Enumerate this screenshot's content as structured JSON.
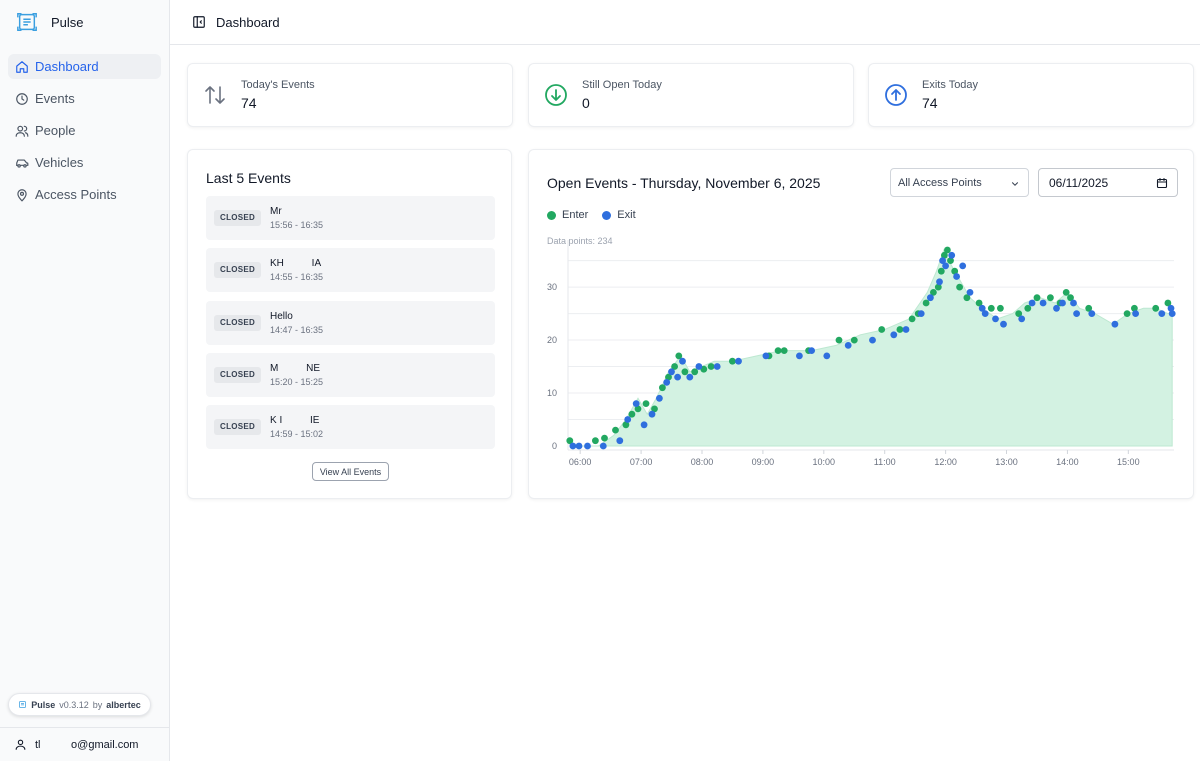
{
  "app": {
    "name": "Pulse"
  },
  "sidebar": {
    "items": [
      {
        "label": "Dashboard",
        "icon": "home-icon",
        "active": true
      },
      {
        "label": "Events",
        "icon": "clock-icon",
        "active": false
      },
      {
        "label": "People",
        "icon": "users-icon",
        "active": false
      },
      {
        "label": "Vehicles",
        "icon": "car-icon",
        "active": false
      },
      {
        "label": "Access Points",
        "icon": "map-pin-icon",
        "active": false
      }
    ],
    "version": {
      "app": "Pulse",
      "version": "v0.3.12",
      "by": "by",
      "company": "albertec"
    },
    "user_email": "tl          o@gmail.com"
  },
  "header": {
    "title": "Dashboard"
  },
  "stats": {
    "todays_events": {
      "label": "Today's Events",
      "value": "74"
    },
    "still_open": {
      "label": "Still Open Today",
      "value": "0"
    },
    "exits_today": {
      "label": "Exits Today",
      "value": "74"
    }
  },
  "events": {
    "title": "Last 5 Events",
    "items": [
      {
        "status": "CLOSED",
        "name": "Mr",
        "time": "15:56 - 16:35"
      },
      {
        "status": "CLOSED",
        "name": "KH          IA",
        "time": "14:55 - 16:35"
      },
      {
        "status": "CLOSED",
        "name": "Hello",
        "time": "14:47 - 16:35"
      },
      {
        "status": "CLOSED",
        "name": "M          NE",
        "time": "15:20 - 15:25"
      },
      {
        "status": "CLOSED",
        "name": "K I          IE",
        "time": "14:59 - 15:02"
      }
    ],
    "view_all_label": "View All Events"
  },
  "chart": {
    "title": "Open Events - Thursday, November 6, 2025",
    "access_point_filter": "All Access Points",
    "date": "06/11/2025",
    "data_points_label": "Data points: 234"
  },
  "colors": {
    "enter": "#22a861",
    "exit": "#2f6fde",
    "area": "#d3f2e2",
    "accent": "#2563eb"
  },
  "chart_data": {
    "type": "area",
    "title": "Open Events - Thursday, November 6, 2025",
    "xlabel": "",
    "ylabel": "",
    "xlim": [
      5.8,
      15.75
    ],
    "ylim": [
      0,
      37
    ],
    "x_ticks": [
      "06:00",
      "07:00",
      "08:00",
      "09:00",
      "10:00",
      "11:00",
      "12:00",
      "13:00",
      "14:00",
      "15:00"
    ],
    "y_ticks": [
      0,
      10,
      20,
      30
    ],
    "legend": [
      "Enter",
      "Exit"
    ],
    "profile": [
      [
        5.83,
        1
      ],
      [
        5.95,
        0
      ],
      [
        6.3,
        0
      ],
      [
        6.55,
        2
      ],
      [
        6.75,
        5
      ],
      [
        6.95,
        9
      ],
      [
        7.1,
        6
      ],
      [
        7.25,
        9
      ],
      [
        7.45,
        14
      ],
      [
        7.65,
        17
      ],
      [
        7.8,
        14
      ],
      [
        8.0,
        15
      ],
      [
        8.2,
        16
      ],
      [
        8.5,
        16
      ],
      [
        8.9,
        17
      ],
      [
        9.3,
        18
      ],
      [
        9.8,
        18
      ],
      [
        10.2,
        19
      ],
      [
        10.6,
        21
      ],
      [
        11.0,
        22
      ],
      [
        11.4,
        24
      ],
      [
        11.7,
        29
      ],
      [
        11.85,
        33
      ],
      [
        11.97,
        37
      ],
      [
        12.05,
        35
      ],
      [
        12.2,
        32
      ],
      [
        12.4,
        28
      ],
      [
        12.6,
        26
      ],
      [
        12.85,
        24
      ],
      [
        13.1,
        25
      ],
      [
        13.3,
        27
      ],
      [
        13.55,
        28
      ],
      [
        13.8,
        27
      ],
      [
        14.0,
        29
      ],
      [
        14.2,
        26
      ],
      [
        14.45,
        25
      ],
      [
        14.75,
        23
      ],
      [
        15.0,
        25
      ],
      [
        15.25,
        26
      ],
      [
        15.45,
        26
      ],
      [
        15.65,
        25
      ],
      [
        15.72,
        25
      ]
    ],
    "enter": [
      [
        5.83,
        1
      ],
      [
        6.25,
        1
      ],
      [
        6.4,
        1.5
      ],
      [
        6.58,
        3
      ],
      [
        6.75,
        4
      ],
      [
        6.85,
        6
      ],
      [
        6.95,
        7
      ],
      [
        7.08,
        8
      ],
      [
        7.22,
        7
      ],
      [
        7.35,
        11
      ],
      [
        7.45,
        13
      ],
      [
        7.55,
        15
      ],
      [
        7.62,
        17
      ],
      [
        7.72,
        14
      ],
      [
        7.88,
        14
      ],
      [
        8.03,
        14.5
      ],
      [
        8.15,
        15
      ],
      [
        8.5,
        16
      ],
      [
        9.1,
        17
      ],
      [
        9.25,
        18
      ],
      [
        9.35,
        18
      ],
      [
        9.75,
        18
      ],
      [
        10.25,
        20
      ],
      [
        10.5,
        20
      ],
      [
        10.95,
        22
      ],
      [
        11.25,
        22
      ],
      [
        11.45,
        24
      ],
      [
        11.55,
        25
      ],
      [
        11.68,
        27
      ],
      [
        11.8,
        29
      ],
      [
        11.88,
        30
      ],
      [
        11.93,
        33
      ],
      [
        11.98,
        36
      ],
      [
        12.03,
        37
      ],
      [
        12.08,
        35
      ],
      [
        12.15,
        33
      ],
      [
        12.23,
        30
      ],
      [
        12.35,
        28
      ],
      [
        12.55,
        27
      ],
      [
        12.75,
        26
      ],
      [
        12.9,
        26
      ],
      [
        13.2,
        25
      ],
      [
        13.35,
        26
      ],
      [
        13.5,
        28
      ],
      [
        13.72,
        28
      ],
      [
        13.88,
        27
      ],
      [
        13.98,
        29
      ],
      [
        14.05,
        28
      ],
      [
        14.35,
        26
      ],
      [
        14.98,
        25
      ],
      [
        15.1,
        26
      ],
      [
        15.45,
        26
      ],
      [
        15.65,
        27
      ]
    ],
    "exit": [
      [
        5.88,
        0
      ],
      [
        5.98,
        0
      ],
      [
        6.12,
        0
      ],
      [
        6.38,
        0
      ],
      [
        6.65,
        1
      ],
      [
        6.78,
        5
      ],
      [
        6.92,
        8
      ],
      [
        7.05,
        4
      ],
      [
        7.18,
        6
      ],
      [
        7.3,
        9
      ],
      [
        7.42,
        12
      ],
      [
        7.5,
        14
      ],
      [
        7.6,
        13
      ],
      [
        7.68,
        16
      ],
      [
        7.8,
        13
      ],
      [
        7.95,
        15
      ],
      [
        8.25,
        15
      ],
      [
        8.6,
        16
      ],
      [
        9.05,
        17
      ],
      [
        9.6,
        17
      ],
      [
        9.8,
        18
      ],
      [
        10.05,
        17
      ],
      [
        10.4,
        19
      ],
      [
        10.8,
        20
      ],
      [
        11.15,
        21
      ],
      [
        11.35,
        22
      ],
      [
        11.6,
        25
      ],
      [
        11.75,
        28
      ],
      [
        11.9,
        31
      ],
      [
        11.95,
        35
      ],
      [
        12.0,
        34
      ],
      [
        12.1,
        36
      ],
      [
        12.18,
        32
      ],
      [
        12.28,
        34
      ],
      [
        12.4,
        29
      ],
      [
        12.6,
        26
      ],
      [
        12.65,
        25
      ],
      [
        12.82,
        24
      ],
      [
        12.95,
        23
      ],
      [
        13.25,
        24
      ],
      [
        13.42,
        27
      ],
      [
        13.6,
        27
      ],
      [
        13.82,
        26
      ],
      [
        13.92,
        27
      ],
      [
        14.1,
        27
      ],
      [
        14.15,
        25
      ],
      [
        14.4,
        25
      ],
      [
        14.78,
        23
      ],
      [
        15.12,
        25
      ],
      [
        15.55,
        25
      ],
      [
        15.7,
        26
      ],
      [
        15.72,
        25
      ]
    ]
  }
}
